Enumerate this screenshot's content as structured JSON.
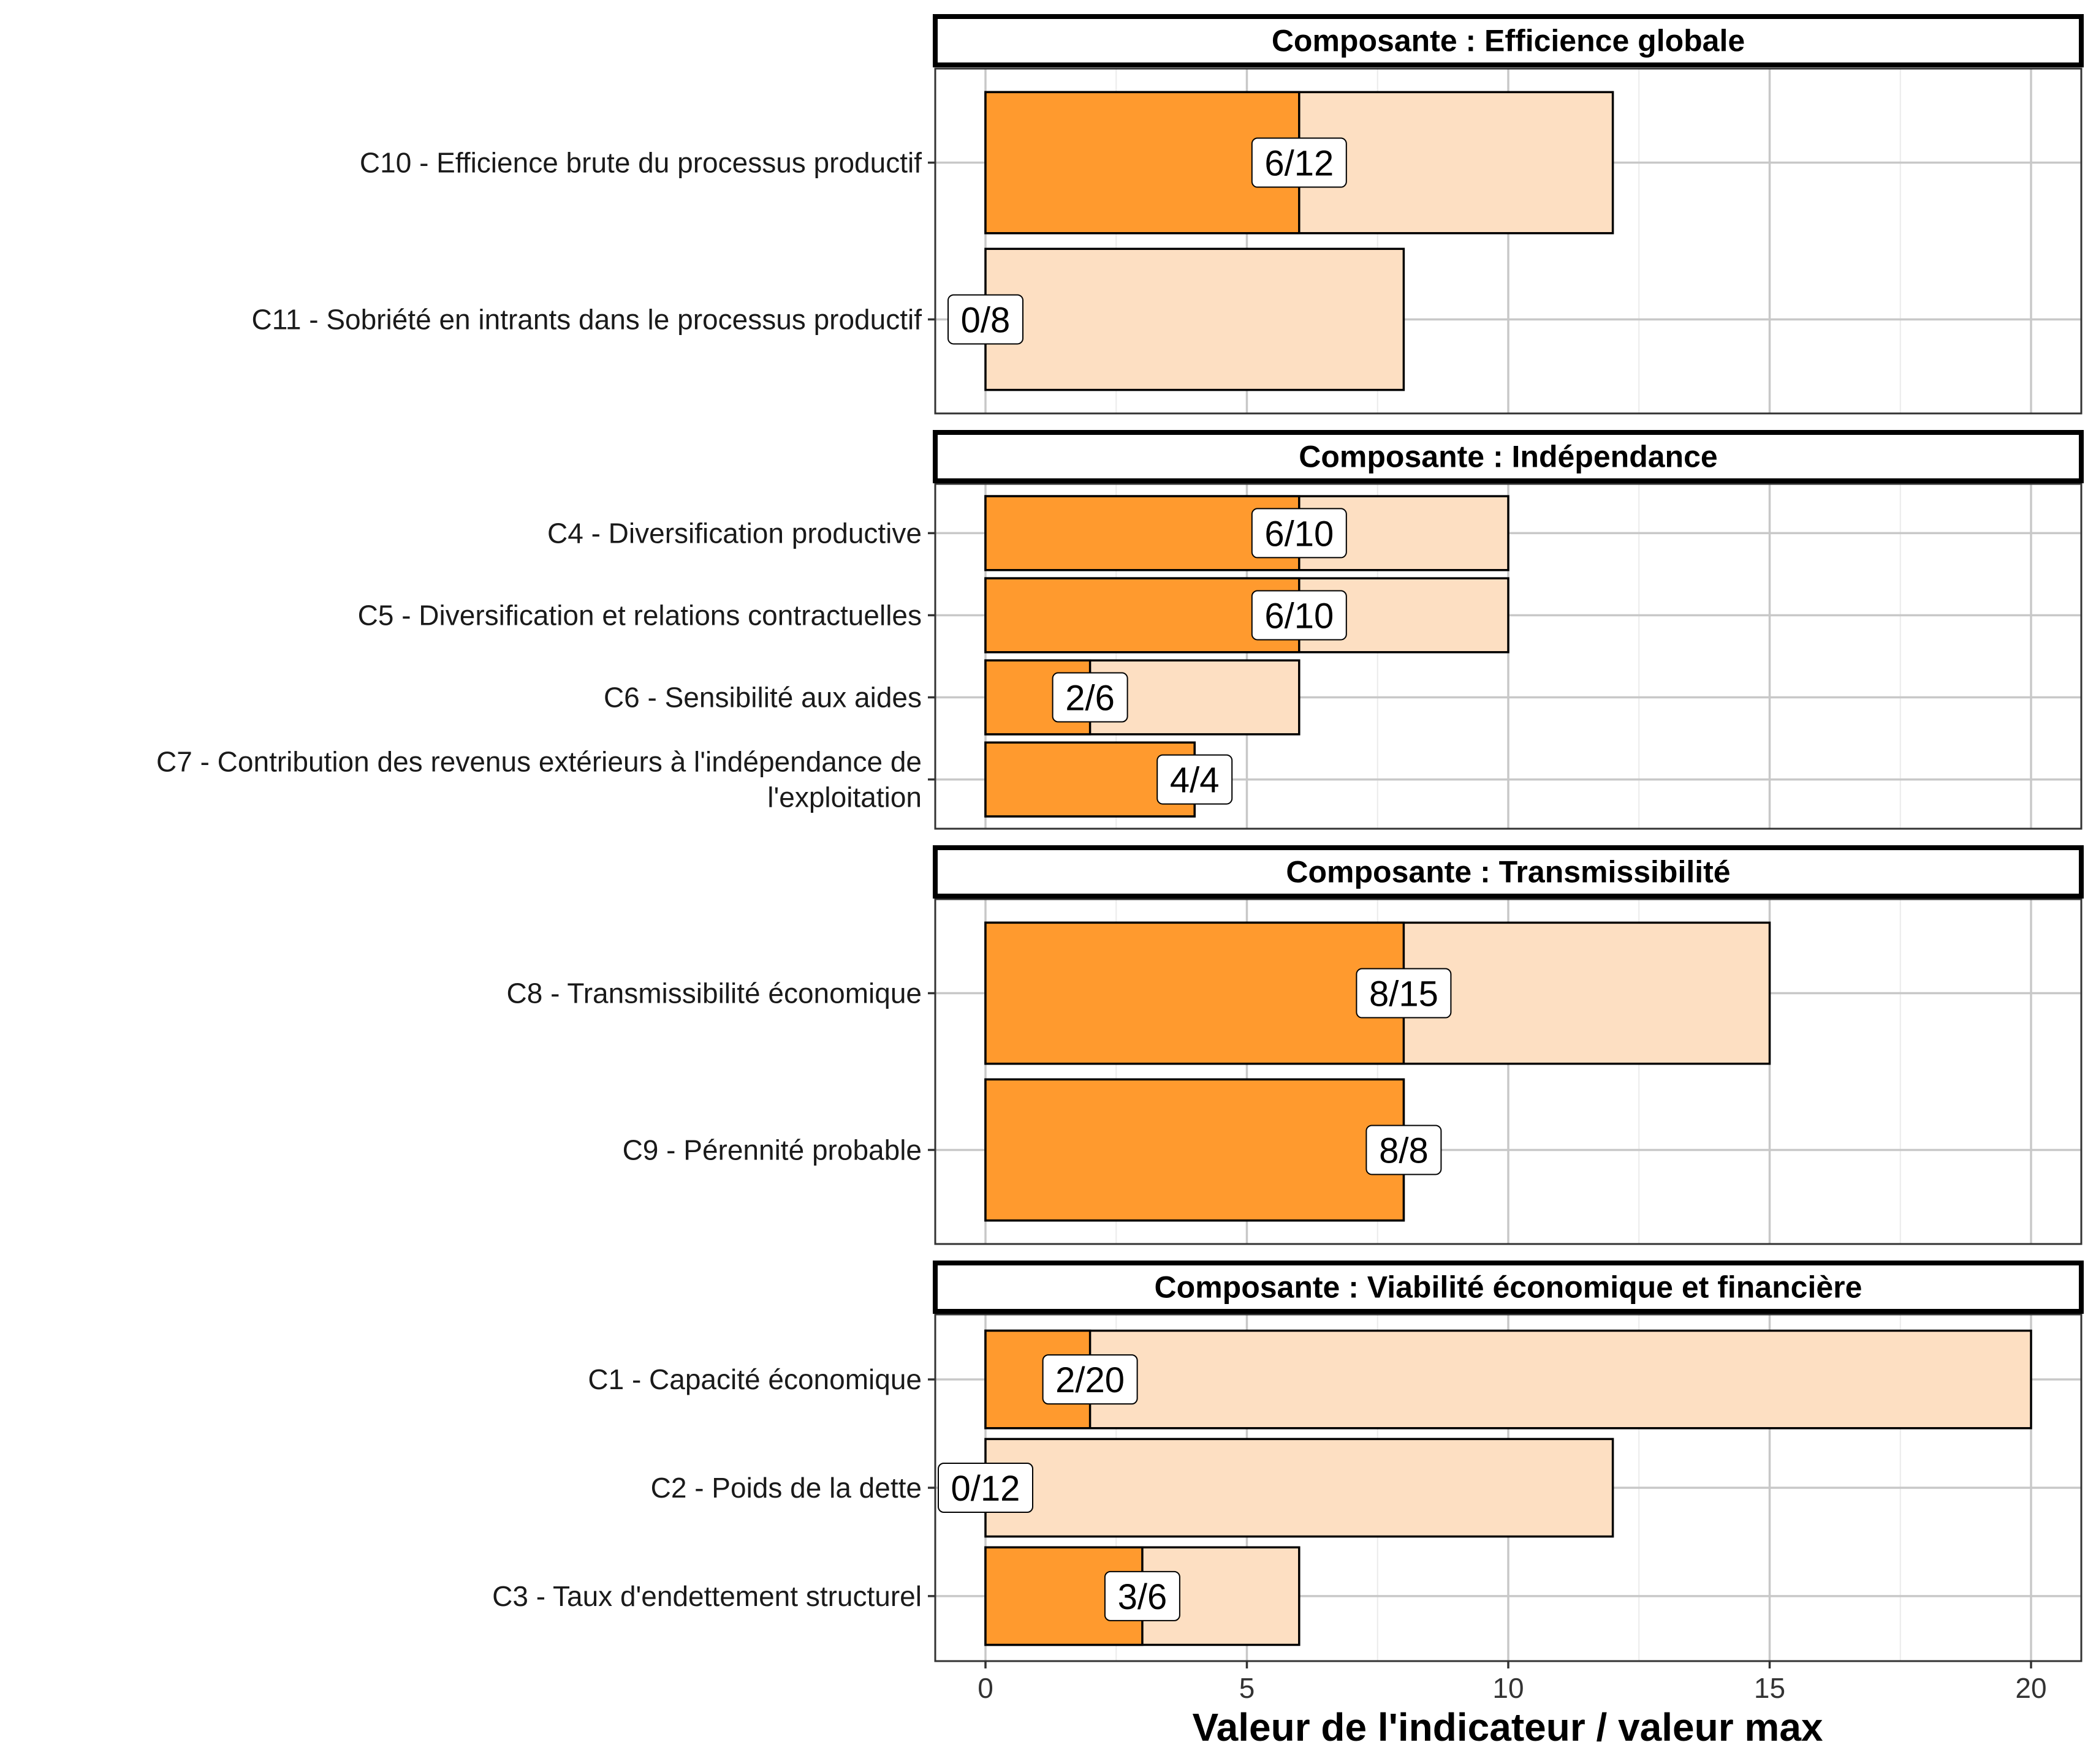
{
  "chart_data": {
    "type": "bar",
    "orientation": "horizontal",
    "xlabel": "Valeur de l'indicateur / valeur max",
    "xlim": [
      0,
      20
    ],
    "xticks": [
      "0",
      "5",
      "10",
      "15",
      "20"
    ],
    "grid": true,
    "colors": {
      "value": "#FF9A2E",
      "max": "#FDDFC2",
      "outline": "#000000"
    },
    "panels": [
      {
        "title": "Composante : Efficience globale",
        "bars": [
          {
            "label": "C10 - Efficience brute du processus productif",
            "value": 6,
            "max": 12,
            "text": "6/12"
          },
          {
            "label": "C11 - Sobriété en intrants dans le processus productif",
            "value": 0,
            "max": 8,
            "text": "0/8"
          }
        ]
      },
      {
        "title": "Composante : Indépendance",
        "bars": [
          {
            "label": "C4 - Diversification productive",
            "value": 6,
            "max": 10,
            "text": "6/10"
          },
          {
            "label": "C5 - Diversification et relations contractuelles",
            "value": 6,
            "max": 10,
            "text": "6/10"
          },
          {
            "label": "C6 - Sensibilité aux aides",
            "value": 2,
            "max": 6,
            "text": "2/6"
          },
          {
            "label": "C7 - Contribution des revenus extérieurs à l'indépendance de l'exploitation",
            "label_lines": [
              "C7 - Contribution des revenus extérieurs à l'indépendance de",
              "l'exploitation"
            ],
            "value": 4,
            "max": 4,
            "text": "4/4"
          }
        ]
      },
      {
        "title": "Composante : Transmissibilité",
        "bars": [
          {
            "label": "C8 - Transmissibilité économique",
            "value": 8,
            "max": 15,
            "text": "8/15"
          },
          {
            "label": "C9 - Pérennité probable",
            "value": 8,
            "max": 8,
            "text": "8/8"
          }
        ]
      },
      {
        "title": "Composante : Viabilité économique et financière",
        "bars": [
          {
            "label": "C1 - Capacité économique",
            "value": 2,
            "max": 20,
            "text": "2/20"
          },
          {
            "label": "C2 - Poids de la dette",
            "value": 0,
            "max": 12,
            "text": "0/12"
          },
          {
            "label": "C3 - Taux d'endettement structurel",
            "value": 3,
            "max": 6,
            "text": "3/6"
          }
        ]
      }
    ]
  }
}
